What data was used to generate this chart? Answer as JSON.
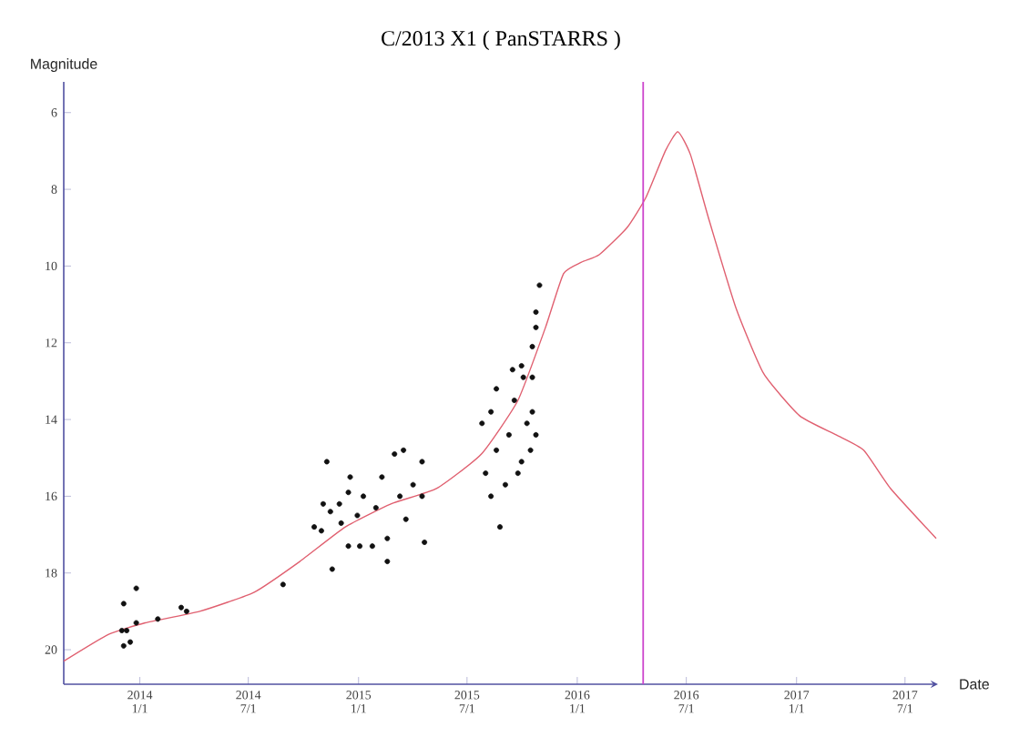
{
  "chart_data": {
    "type": "scatter",
    "title": "C/2013 X1 ( PanSTARRS )",
    "xlabel": "Date",
    "ylabel": "Magnitude",
    "xlim": [
      "2013-08-27",
      "2017-08-25"
    ],
    "ylim": [
      20.9,
      5.2
    ],
    "xticks": [
      {
        "value": "2014-01-01",
        "label": "2014 1/1"
      },
      {
        "value": "2014-07-01",
        "label": "2014 7/1"
      },
      {
        "value": "2015-01-01",
        "label": "2015 1/1"
      },
      {
        "value": "2015-07-01",
        "label": "2015 7/1"
      },
      {
        "value": "2016-01-01",
        "label": "2016 1/1"
      },
      {
        "value": "2016-07-01",
        "label": "2016 7/1"
      },
      {
        "value": "2017-01-01",
        "label": "2017 1/1"
      },
      {
        "value": "2017-07-01",
        "label": "2017 7/1"
      }
    ],
    "yticks": [
      6,
      8,
      10,
      12,
      14,
      16,
      18,
      20
    ],
    "marker": "circle",
    "ref_lines": [
      {
        "axis": "x",
        "value": "2016-04-20",
        "color": "#cc44cc"
      }
    ],
    "series": [
      {
        "color": "#111111",
        "x": [
          "2013-12-05",
          "2013-12-02",
          "2013-12-10",
          "2013-12-26",
          "2013-12-05",
          "2013-12-26",
          "2014-01-31",
          "2014-03-11",
          "2014-03-20",
          "2013-12-16",
          "2014-08-28",
          "2014-11-09",
          "2014-10-19",
          "2014-10-31",
          "2014-11-15",
          "2014-11-30",
          "2014-12-15",
          "2014-12-18",
          "2014-12-30",
          "2015-01-09",
          "2015-01-03",
          "2014-11-18",
          "2015-01-30",
          "2015-02-09",
          "2015-02-18",
          "2015-02-18",
          "2015-03-02",
          "2015-03-17",
          "2015-03-11",
          "2015-03-21",
          "2015-04-02",
          "2015-04-17",
          "2015-04-21",
          "2015-04-17",
          "2014-12-03",
          "2014-11-03",
          "2015-01-24",
          "2014-12-15",
          "2015-08-25",
          "2015-08-10",
          "2015-08-01",
          "2015-07-26",
          "2015-08-10",
          "2015-08-19",
          "2015-09-03",
          "2015-09-09",
          "2015-09-18",
          "2015-09-30",
          "2015-10-09",
          "2015-10-15",
          "2015-10-18",
          "2015-10-03",
          "2015-09-30",
          "2015-10-18",
          "2015-10-24",
          "2015-10-24",
          "2015-10-30",
          "2015-08-19",
          "2015-09-15",
          "2015-10-18",
          "2015-09-24",
          "2015-10-24"
        ],
        "values": [
          19.9,
          19.5,
          19.5,
          18.4,
          18.8,
          19.3,
          19.2,
          18.9,
          19.0,
          19.8,
          18.3,
          15.1,
          16.8,
          16.9,
          16.4,
          16.2,
          15.9,
          15.5,
          16.5,
          16.0,
          17.3,
          17.9,
          16.3,
          15.5,
          17.1,
          17.7,
          14.9,
          14.8,
          16.0,
          16.6,
          15.7,
          15.1,
          17.2,
          16.0,
          16.7,
          16.2,
          17.3,
          17.3,
          16.8,
          16.0,
          15.4,
          14.1,
          13.8,
          14.8,
          15.7,
          14.4,
          13.5,
          15.1,
          14.1,
          14.8,
          13.8,
          12.9,
          12.6,
          12.1,
          11.6,
          11.2,
          10.5,
          13.2,
          12.7,
          12.9,
          15.4,
          14.4
        ]
      },
      {
        "type": "line",
        "color": "#e06070",
        "marker": "none",
        "x": [
          "2013-08-27",
          "2013-11-10",
          "2014-01-10",
          "2014-04-11",
          "2014-07-11",
          "2014-09-25",
          "2014-12-10",
          "2015-02-24",
          "2015-05-11",
          "2015-07-25",
          "2015-09-24",
          "2015-11-09",
          "2015-12-09",
          "2016-01-08",
          "2016-02-07",
          "2016-03-24",
          "2016-04-25",
          "2016-05-27",
          "2016-06-17",
          "2016-07-08",
          "2016-08-08",
          "2016-09-22",
          "2016-11-07",
          "2017-01-06",
          "2017-03-08",
          "2017-04-23",
          "2017-06-07",
          "2017-08-22"
        ],
        "values": [
          20.3,
          19.6,
          19.3,
          19.0,
          18.5,
          17.7,
          16.8,
          16.2,
          15.8,
          14.9,
          13.5,
          11.6,
          10.2,
          9.9,
          9.7,
          9.0,
          8.2,
          7.0,
          6.5,
          7.1,
          8.8,
          11.1,
          12.8,
          13.9,
          14.4,
          14.8,
          15.8,
          17.1
        ]
      }
    ]
  }
}
